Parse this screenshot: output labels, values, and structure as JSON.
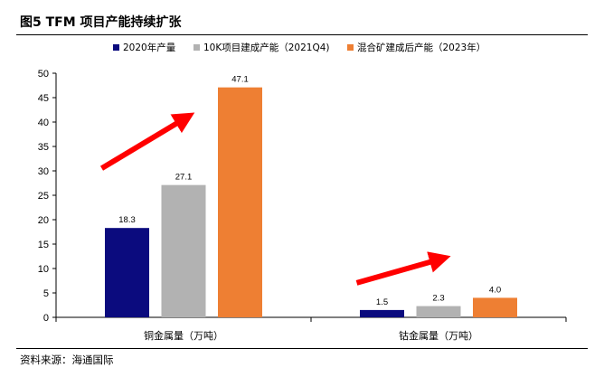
{
  "figure": {
    "title": "图5   TFM 项目产能持续扩张",
    "source": "资料来源：海通国际"
  },
  "colors": {
    "series": [
      "#0b0b7e",
      "#b2b2b2",
      "#ee7f33"
    ],
    "arrow": "#ff0000"
  },
  "chart_data": {
    "type": "bar",
    "categories": [
      "铜金属量（万吨）",
      "钴金属量（万吨）"
    ],
    "series": [
      {
        "name": "2020年产量",
        "values": [
          18.3,
          1.5
        ]
      },
      {
        "name": "10K项目建成产能（2021Q4)",
        "values": [
          27.1,
          2.3
        ]
      },
      {
        "name": "混合矿建成后产能（2023年）",
        "values": [
          47.1,
          4.0
        ]
      }
    ],
    "data_labels": [
      [
        "18.3",
        "27.1",
        "47.1"
      ],
      [
        "1.5",
        "2.3",
        "4.0"
      ]
    ],
    "ylim": [
      0,
      50
    ],
    "yticks": [
      0,
      5,
      10,
      15,
      20,
      25,
      30,
      35,
      40,
      45,
      50
    ],
    "grid": false,
    "legend_position": "top-center",
    "annotations": [
      "upward-trend-arrow",
      "upward-trend-arrow"
    ]
  }
}
